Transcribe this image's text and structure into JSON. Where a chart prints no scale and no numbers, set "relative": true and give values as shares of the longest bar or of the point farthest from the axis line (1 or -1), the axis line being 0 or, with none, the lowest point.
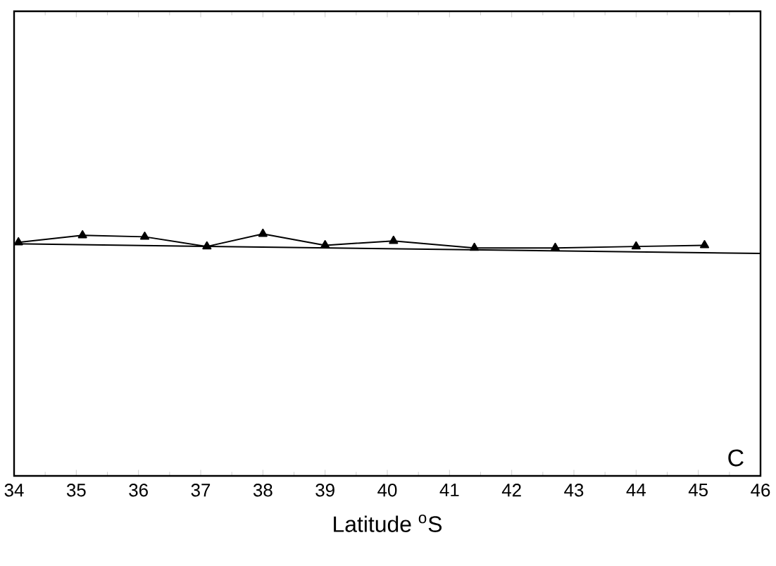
{
  "chart_data": {
    "type": "line",
    "xlabel": "Latitude $^{o}$S",
    "relative": true,
    "tick_labels": "x",
    "marker": "triangle",
    "line_style": "solid",
    "grid": false,
    "annotations": [
      "C"
    ],
    "xlim": [
      34,
      46
    ],
    "xticks": [
      34,
      35,
      36,
      37,
      38,
      39,
      40,
      41,
      42,
      43,
      44,
      45,
      46
    ],
    "series": [
      {
        "color": "#000000",
        "x": [
          34.07,
          35.1,
          36.1,
          37.1,
          38.0,
          39.0,
          40.1,
          41.4,
          42.7,
          44.0,
          45.1
        ],
        "values": [
          0.965,
          0.994,
          0.988,
          0.948,
          1,
          0.953,
          0.971,
          0.942,
          0.942,
          0.948,
          0.953
        ]
      },
      {
        "type": "line",
        "marker": "none",
        "color": "#000000",
        "x": [
          34,
          46
        ],
        "values": [
          0.959,
          0.919
        ]
      }
    ]
  }
}
